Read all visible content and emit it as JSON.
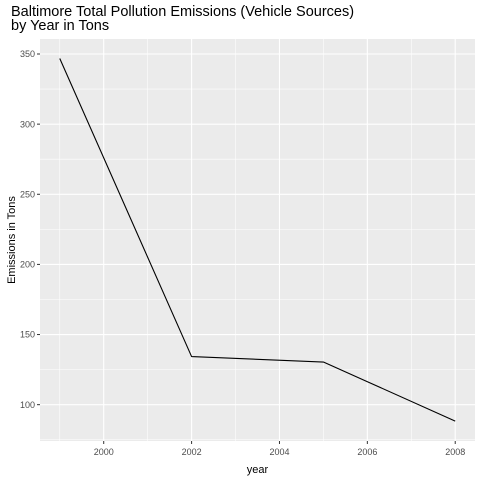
{
  "chart_data": {
    "type": "line",
    "title_lines": [
      "Baltimore Total Pollution Emissions (Vehicle Sources)",
      "by Year in Tons"
    ],
    "xlabel": "year",
    "ylabel": "Emissions in Tons",
    "x": [
      1999,
      2002,
      2005,
      2008
    ],
    "series": [
      {
        "values": [
          346.8,
          134.3,
          130.4,
          88.3
        ]
      }
    ],
    "xlim": [
      1998.55,
      2008.45
    ],
    "ylim": [
      74.1,
      360.7
    ],
    "xticks": [
      2000,
      2002,
      2004,
      2006,
      2008
    ],
    "xtick_labels": [
      "2000",
      "2002",
      "2004",
      "2006",
      "2008"
    ],
    "yticks": [
      100,
      150,
      200,
      250,
      300,
      350
    ],
    "ytick_labels": [
      "100",
      "150",
      "200",
      "250",
      "300",
      "350"
    ],
    "grid": true,
    "legend": "none",
    "colors": {
      "panel": "#EBEBEB",
      "grid": "#FFFFFF",
      "line": "#000000",
      "tick_text": "#4D4D4D",
      "axis_title": "#000000"
    }
  }
}
